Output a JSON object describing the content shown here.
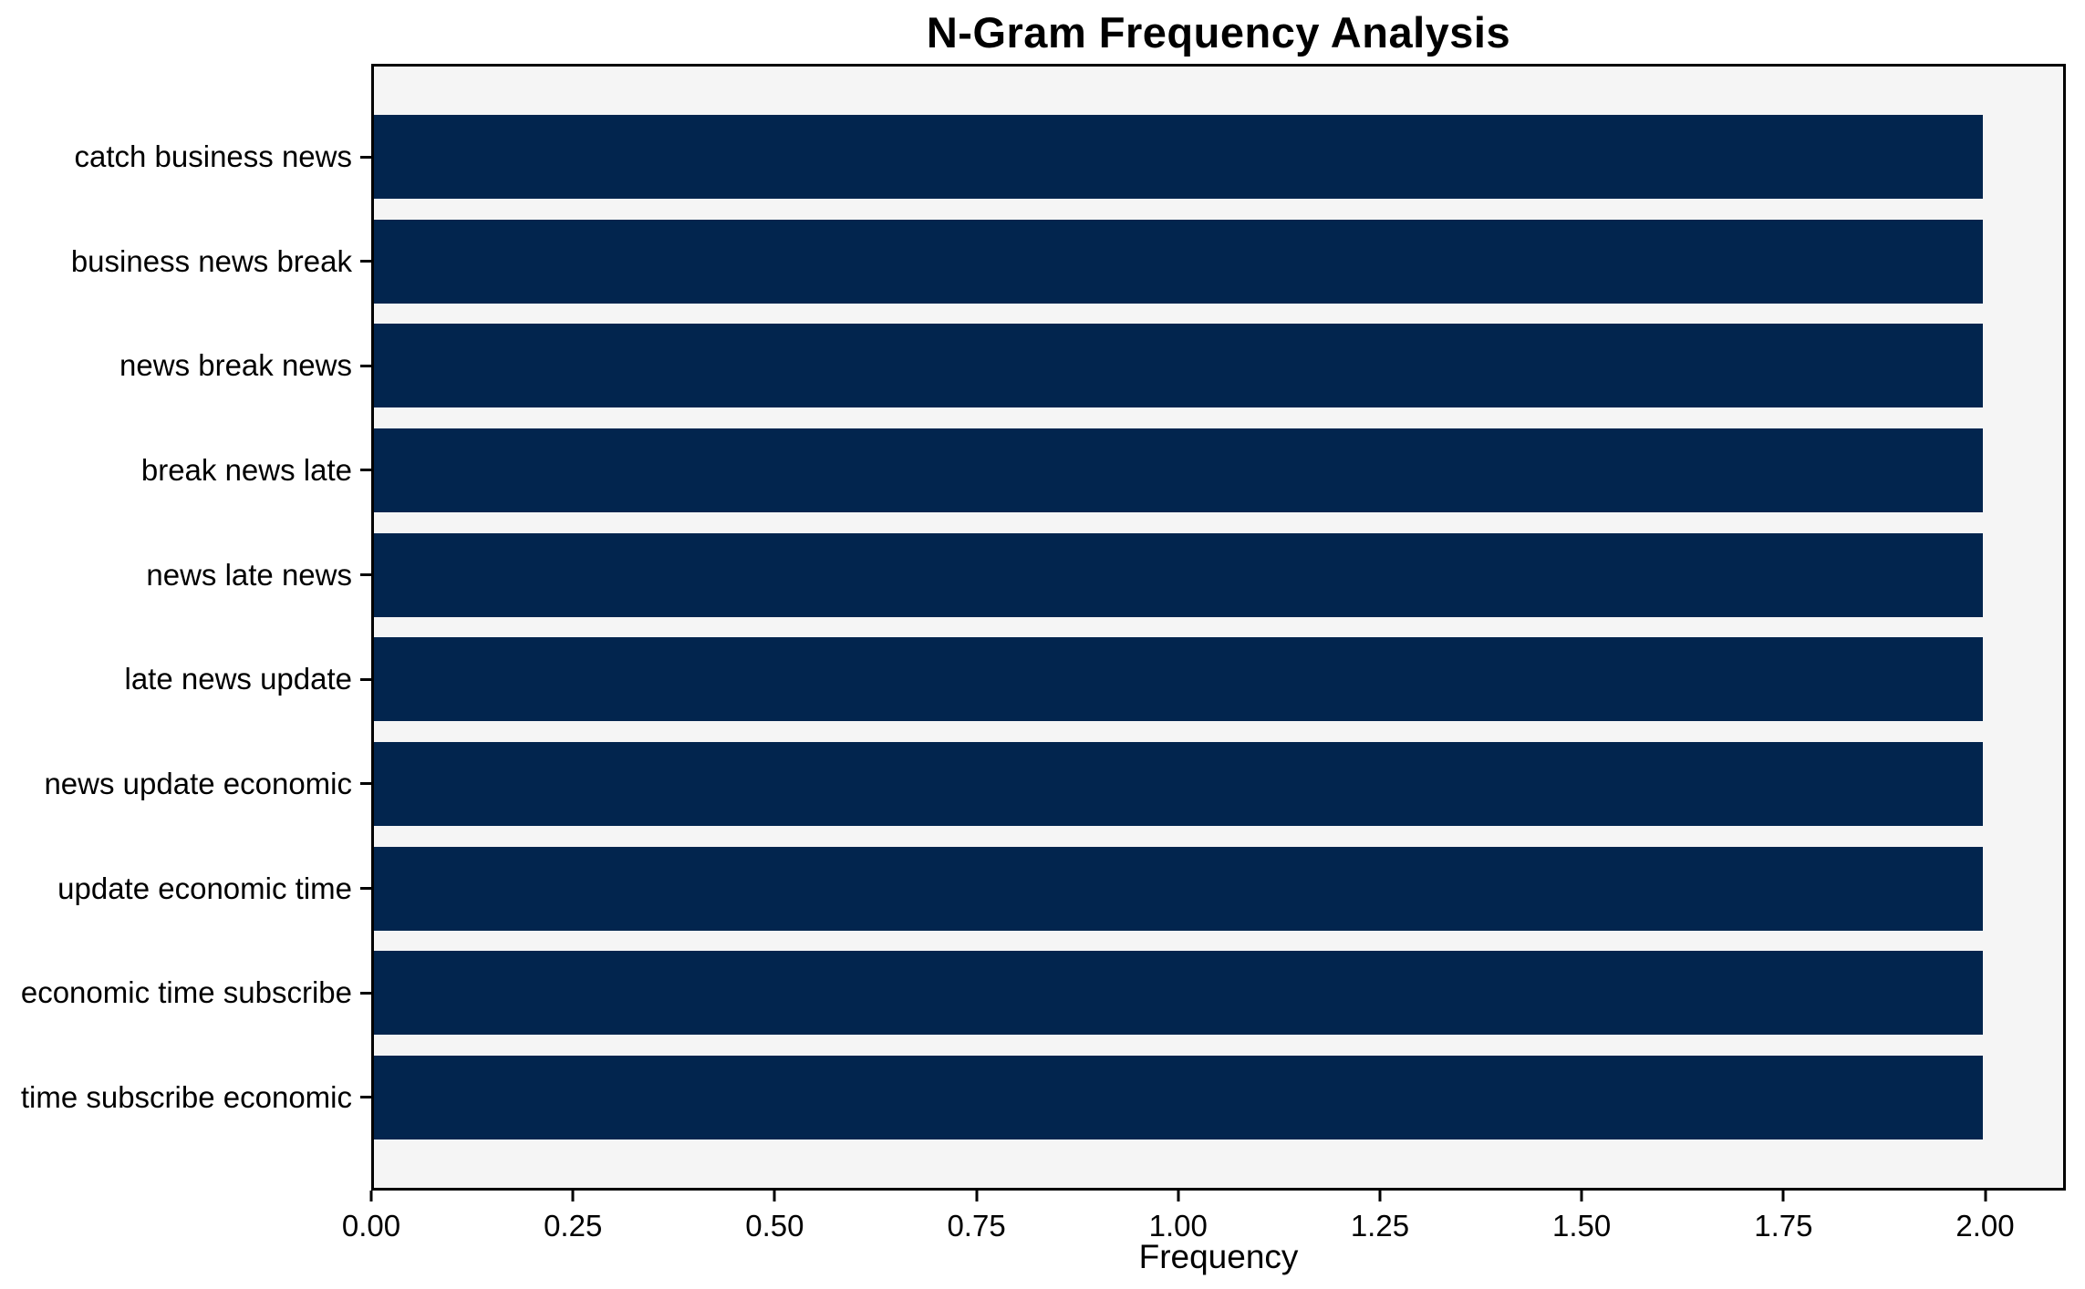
{
  "figure": {
    "title": "N-Gram Frequency Analysis",
    "xlabel": "Frequency"
  },
  "chart_data": {
    "type": "bar",
    "orientation": "horizontal",
    "title": "N-Gram Frequency Analysis",
    "categories": [
      "catch business news",
      "business news break",
      "news break news",
      "break news late",
      "news late news",
      "late news update",
      "news update economic",
      "update economic time",
      "economic time subscribe",
      "time subscribe economic"
    ],
    "values": [
      2,
      2,
      2,
      2,
      2,
      2,
      2,
      2,
      2,
      2
    ],
    "xlabel": "Frequency",
    "ylabel": "",
    "xlim": [
      0,
      2.1
    ],
    "xticks": [
      {
        "value": 0.0,
        "label": "0.00"
      },
      {
        "value": 0.25,
        "label": "0.25"
      },
      {
        "value": 0.5,
        "label": "0.50"
      },
      {
        "value": 0.75,
        "label": "0.75"
      },
      {
        "value": 1.0,
        "label": "1.00"
      },
      {
        "value": 1.25,
        "label": "1.25"
      },
      {
        "value": 1.5,
        "label": "1.50"
      },
      {
        "value": 1.75,
        "label": "1.75"
      },
      {
        "value": 2.0,
        "label": "2.00"
      }
    ],
    "grid": false,
    "legend": false,
    "colors": {
      "bar": "#02254e",
      "plot_bg": "#f5f5f5",
      "figure_bg": "#ffffff",
      "axis": "#000000",
      "text": "#000000"
    }
  }
}
